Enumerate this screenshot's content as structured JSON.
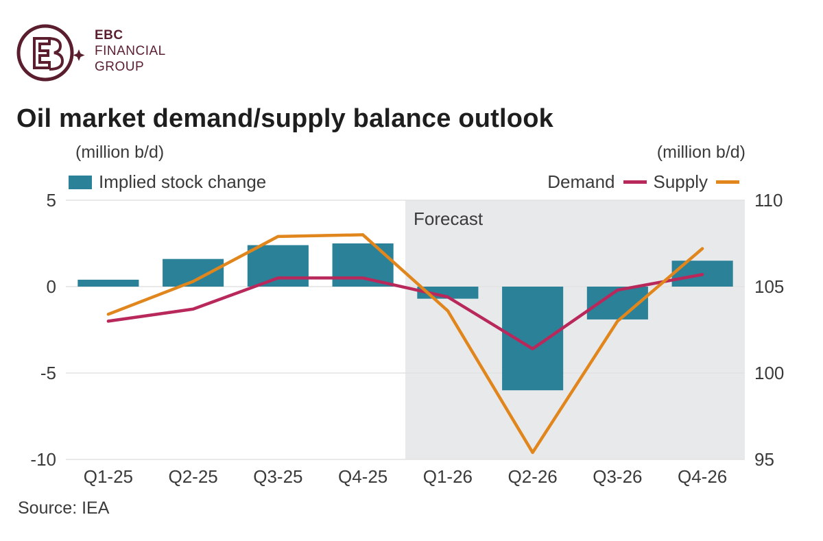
{
  "brand": {
    "line1": "EBC",
    "line2": "FINANCIAL",
    "line3": "GROUP",
    "color": "#5a1e2e"
  },
  "header": {
    "title": "Oil market demand/supply balance outlook",
    "unit_left": "(million b/d)",
    "unit_right": "(million b/d)"
  },
  "legend": {
    "bar_label": "Implied stock change",
    "demand_label": "Demand",
    "supply_label": "Supply"
  },
  "forecast_label": "Forecast",
  "source": "Source: IEA",
  "colors": {
    "bar": "#2b8298",
    "demand": "#b8285a",
    "supply": "#e0861c",
    "forecast_bg": "#e8e9eb",
    "grid": "#e2e2e2"
  },
  "chart_data": {
    "type": "bar",
    "categories": [
      "Q1-25",
      "Q2-25",
      "Q3-25",
      "Q4-25",
      "Q1-26",
      "Q2-26",
      "Q3-26",
      "Q4-26"
    ],
    "forecast_start_index": 4,
    "left_axis": {
      "ylim": [
        -10,
        5
      ],
      "ticks": [
        "5",
        "0",
        "-5",
        "-10"
      ],
      "tick_values": [
        5,
        0,
        -5,
        -10
      ]
    },
    "right_axis": {
      "ylim": [
        95,
        110
      ],
      "ticks": [
        "110",
        "105",
        "100",
        "95"
      ],
      "tick_values": [
        110,
        105,
        100,
        95
      ]
    },
    "series": [
      {
        "name": "Implied stock change",
        "type": "bar",
        "axis": "left",
        "values": [
          0.4,
          1.6,
          2.4,
          2.5,
          -0.7,
          -6.0,
          -1.9,
          1.5
        ]
      },
      {
        "name": "Demand",
        "type": "line",
        "axis": "right",
        "values": [
          103.0,
          103.7,
          105.5,
          105.5,
          104.4,
          101.4,
          104.8,
          105.7
        ]
      },
      {
        "name": "Supply",
        "type": "line",
        "axis": "right",
        "values": [
          103.4,
          105.3,
          107.9,
          108.0,
          103.6,
          95.4,
          103.0,
          107.2
        ]
      }
    ]
  }
}
